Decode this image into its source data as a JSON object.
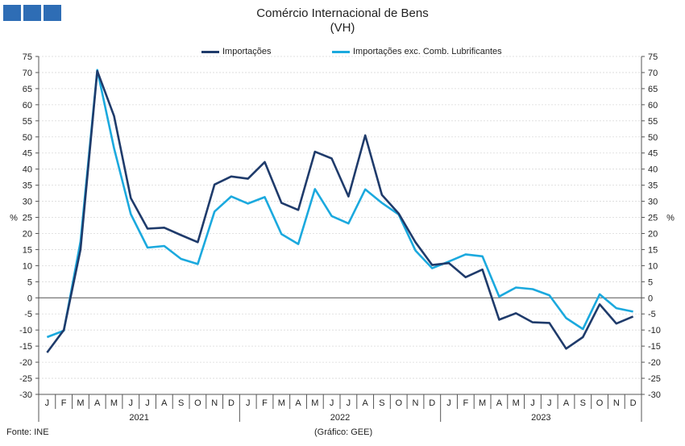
{
  "header": {
    "logo_icon": "three-blue-squares-logo-icon",
    "title": "Comércio Internacional de Bens",
    "subtitle": "(VH)"
  },
  "footer": {
    "source": "Fonte: INE",
    "credit": "(Gráfico: GEE)"
  },
  "chart_data": {
    "type": "line",
    "title": "Comércio Internacional de Bens",
    "subtitle": "(VH)",
    "ylabel_left": "%",
    "ylabel_right": "%",
    "ylim": [
      -30,
      75
    ],
    "ytick_step": 5,
    "grid": true,
    "legend_position": "top-center",
    "months": [
      "J",
      "F",
      "M",
      "A",
      "M",
      "J",
      "J",
      "A",
      "S",
      "O",
      "N",
      "D",
      "J",
      "F",
      "M",
      "A",
      "M",
      "J",
      "J",
      "A",
      "S",
      "O",
      "N",
      "D",
      "J",
      "F",
      "M",
      "A",
      "M",
      "J",
      "J",
      "A",
      "S",
      "O",
      "N",
      "D"
    ],
    "years": [
      "2021",
      "2022",
      "2023"
    ],
    "series": [
      {
        "name": "Importações",
        "color": "#1f3b6b",
        "values": [
          -17,
          -10,
          15,
          70.5,
          56.5,
          31,
          21.5,
          21.8,
          19.5,
          17.3,
          35.2,
          37.7,
          37,
          42.2,
          29.5,
          27.3,
          45.4,
          43.3,
          31.5,
          50.5,
          32,
          26.2,
          17.3,
          10.2,
          10.8,
          6.4,
          8.8,
          -6.8,
          -4.8,
          -7.6,
          -7.8,
          -15.8,
          -12.2,
          -2,
          -8,
          -5.8
        ]
      },
      {
        "name": "Importações exc. Comb. Lubrificantes",
        "color": "#1ba9de",
        "values": [
          -12.2,
          -10.2,
          17.5,
          70.8,
          46.5,
          26,
          15.6,
          16.1,
          12.1,
          10.5,
          26.8,
          31.5,
          29.3,
          31.3,
          19.8,
          16.7,
          33.8,
          25.4,
          23.1,
          33.7,
          29.5,
          25.9,
          14.7,
          9.2,
          11.3,
          13.5,
          12.9,
          0.4,
          3.2,
          2.7,
          0.8,
          -6.3,
          -9.7,
          1.1,
          -3.2,
          -4.3
        ]
      }
    ]
  }
}
